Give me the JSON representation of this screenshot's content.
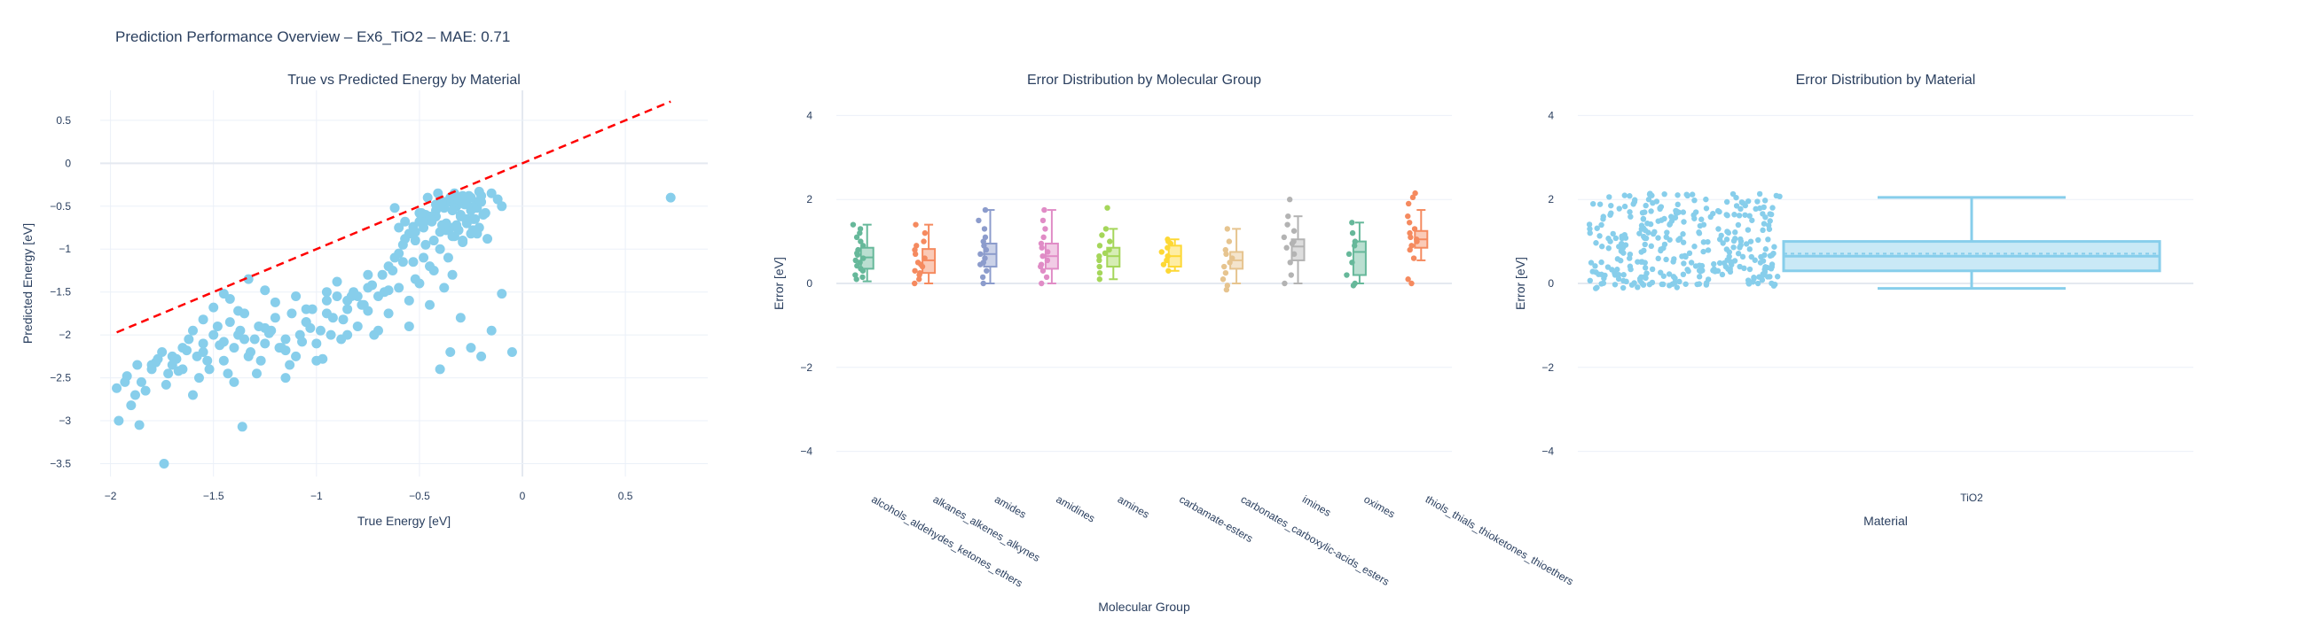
{
  "page": {
    "title": "Prediction Performance Overview – Ex6_TiO2 – MAE: 0.71"
  },
  "colors": {
    "text": "#2a3f5f",
    "grid": "#ebf0f8",
    "zeroline": "#e4e9f0",
    "scatter": "#87ceeb",
    "identity_line": "#ff0000"
  },
  "chart_data": [
    {
      "type": "scatter",
      "title": "True vs Predicted Energy by Material",
      "xlabel": "True Energy [eV]",
      "ylabel": "Predicted Energy [eV]",
      "xlim": [
        -2.05,
        0.9
      ],
      "ylim": [
        -3.65,
        0.85
      ],
      "xticks": [
        -2,
        -1.5,
        -1,
        -0.5,
        0,
        0.5
      ],
      "xtick_labels": [
        "−2",
        "−1.5",
        "−1",
        "−0.5",
        "0",
        "0.5"
      ],
      "yticks": [
        0.5,
        0,
        -0.5,
        -1,
        -1.5,
        -2,
        -2.5,
        -3,
        -3.5
      ],
      "ytick_labels": [
        "0.5",
        "0",
        "−0.5",
        "−1",
        "−1.5",
        "−2",
        "−2.5",
        "−3",
        "−3.5"
      ],
      "grid": true,
      "identity_line": {
        "x": [
          -1.97,
          0.72
        ],
        "y": [
          -1.97,
          0.72
        ],
        "style": "dashed"
      },
      "series": [
        {
          "x": [
            -1.97,
            -1.92,
            -1.9,
            -1.88,
            -1.85,
            -1.8,
            -1.78,
            -1.75,
            -1.72,
            -1.7,
            -1.68,
            -1.65,
            -1.62,
            -1.6,
            -1.58,
            -1.55,
            -1.52,
            -1.5,
            -1.48,
            -1.45,
            -1.42,
            -1.4,
            -1.38,
            -1.35,
            -1.32,
            -1.3,
            -1.28,
            -1.25,
            -1.22,
            -1.2,
            -1.18,
            -1.15,
            -1.12,
            -1.1,
            -1.08,
            -1.05,
            -1.02,
            -1.0,
            -0.98,
            -0.95,
            -0.92,
            -0.9,
            -0.88,
            -0.85,
            -0.82,
            -0.8,
            -0.78,
            -0.75,
            -0.72,
            -0.7,
            -0.68,
            -0.65,
            -0.62,
            -0.6,
            -0.58,
            -0.55,
            -0.52,
            -0.5,
            -0.48,
            -0.45,
            -0.42,
            -0.4,
            -0.38,
            -0.35,
            -0.32,
            -0.3,
            -0.28,
            -0.25,
            -0.22,
            -0.2,
            -1.96,
            -1.93,
            -1.87,
            -1.83,
            -1.77,
            -1.73,
            -1.67,
            -1.63,
            -1.57,
            -1.53,
            -1.47,
            -1.43,
            -1.37,
            -1.33,
            -1.27,
            -1.23,
            -1.17,
            -1.13,
            -1.07,
            -1.03,
            -0.97,
            -0.93,
            -0.87,
            -0.83,
            -0.77,
            -0.73,
            -0.67,
            -0.63,
            -0.57,
            -0.53,
            -0.47,
            -0.43,
            -0.37,
            -0.33,
            -0.27,
            -0.23,
            -0.18,
            -0.15,
            -0.12,
            -0.1,
            -1.74,
            -1.36,
            -1.86,
            -1.6,
            -1.4,
            -1.29,
            -1.15,
            -1.0,
            -0.85,
            -0.7,
            -0.55,
            -0.45,
            -0.4,
            -0.35,
            -0.3,
            -0.25,
            -0.2,
            -0.15,
            -0.1,
            -0.05,
            0.72,
            -0.5,
            -0.45,
            -0.42,
            -0.38,
            -0.36,
            -0.34,
            -0.32,
            -0.3,
            -0.28,
            -0.26,
            -0.24,
            -0.22,
            -0.2,
            -0.18,
            -0.48,
            -0.44,
            -0.4,
            -0.37,
            -0.33,
            -0.31,
            -0.29,
            -0.27,
            -0.25,
            -0.23,
            -0.21,
            -0.19,
            -0.46,
            -0.41,
            -0.39,
            -0.35,
            -0.33,
            -0.31,
            -0.29,
            -0.27,
            -0.25,
            -0.21,
            -1.45,
            -1.5,
            -1.55,
            -1.42,
            -1.38,
            -1.33,
            -1.25,
            -1.2,
            -1.1,
            -1.05,
            -0.95,
            -0.9,
            -0.8,
            -0.75,
            -0.65,
            -0.6,
            -0.52,
            -0.48,
            -0.43,
            -0.38,
            -0.36,
            -0.34,
            -0.6,
            -0.55,
            -0.5,
            -1.8,
            -1.7,
            -1.65,
            -1.55,
            -1.45,
            -1.35,
            -1.25,
            -1.15,
            -1.05,
            -0.95,
            -0.85,
            -0.75,
            -0.65,
            -0.58,
            -0.52,
            -0.47,
            -0.42,
            -0.37,
            -0.32,
            -0.27,
            -0.22,
            -0.17,
            -0.62,
            -0.57,
            -0.53,
            -0.49,
            -0.44,
            -0.39,
            -0.34,
            -0.29,
            -0.24
          ],
          "y": [
            -2.62,
            -2.48,
            -2.82,
            -2.7,
            -2.55,
            -2.4,
            -2.32,
            -2.2,
            -2.45,
            -2.35,
            -2.28,
            -2.15,
            -2.05,
            -1.95,
            -2.25,
            -2.1,
            -2.4,
            -2.0,
            -1.9,
            -2.3,
            -1.85,
            -2.15,
            -2.0,
            -1.75,
            -2.2,
            -2.05,
            -1.9,
            -2.1,
            -1.95,
            -1.8,
            -2.15,
            -2.05,
            -1.75,
            -2.25,
            -2.0,
            -1.85,
            -1.7,
            -2.1,
            -1.95,
            -1.6,
            -1.8,
            -1.55,
            -2.05,
            -1.7,
            -1.5,
            -1.9,
            -1.65,
            -1.45,
            -2.0,
            -1.55,
            -1.3,
            -1.75,
            -1.1,
            -1.45,
            -0.95,
            -1.6,
            -0.8,
            -1.4,
            -0.7,
            -1.2,
            -0.55,
            -1.0,
            -0.45,
            -0.75,
            -0.5,
            -0.62,
            -0.4,
            -0.55,
            -0.45,
            -0.38,
            -3.0,
            -2.55,
            -2.35,
            -2.65,
            -2.28,
            -2.58,
            -2.42,
            -2.18,
            -2.5,
            -2.3,
            -2.12,
            -2.45,
            -1.95,
            -2.25,
            -2.3,
            -1.98,
            -2.15,
            -2.35,
            -2.08,
            -1.92,
            -2.28,
            -2.0,
            -1.82,
            -1.55,
            -1.65,
            -1.42,
            -1.5,
            -1.25,
            -0.88,
            -1.15,
            -0.6,
            -0.9,
            -0.7,
            -0.48,
            -0.65,
            -0.5,
            -0.58,
            -0.35,
            -0.42,
            -0.5,
            -3.5,
            -3.07,
            -3.05,
            -2.7,
            -2.55,
            -2.45,
            -2.5,
            -2.3,
            -2.0,
            -1.95,
            -1.9,
            -1.65,
            -2.4,
            -2.2,
            -1.8,
            -2.15,
            -2.25,
            -1.95,
            -1.52,
            -2.2,
            -0.4,
            -0.58,
            -0.62,
            -0.48,
            -0.52,
            -0.45,
            -0.55,
            -0.42,
            -0.6,
            -0.48,
            -0.38,
            -0.65,
            -0.52,
            -0.45,
            -0.58,
            -0.75,
            -0.68,
            -0.8,
            -0.72,
            -0.85,
            -0.78,
            -0.9,
            -0.7,
            -0.82,
            -0.65,
            -0.75,
            -0.6,
            -0.4,
            -0.35,
            -0.45,
            -0.4,
            -0.35,
            -0.42,
            -0.38,
            -0.46,
            -0.4,
            -0.33,
            -1.52,
            -1.68,
            -1.82,
            -1.58,
            -1.72,
            -1.35,
            -1.48,
            -1.62,
            -1.55,
            -1.7,
            -1.5,
            -1.38,
            -1.55,
            -1.3,
            -1.2,
            -1.05,
            -1.35,
            -1.1,
            -1.25,
            -1.45,
            -1.1,
            -1.3,
            -0.75,
            -0.82,
            -0.68,
            -2.35,
            -2.25,
            -2.4,
            -2.2,
            -2.08,
            -2.05,
            -1.92,
            -2.18,
            -1.85,
            -1.75,
            -1.6,
            -1.72,
            -1.48,
            -1.15,
            -0.9,
            -0.95,
            -0.62,
            -0.78,
            -0.72,
            -0.68,
            -0.82,
            -0.88,
            -0.52,
            -0.68,
            -0.74,
            -0.58,
            -0.66,
            -0.72,
            -0.85,
            -0.92,
            -0.78
          ]
        }
      ]
    },
    {
      "type": "box",
      "title": "Error Distribution by Molecular Group",
      "xlabel": "Molecular Group",
      "ylabel": "Error [eV]",
      "ylim": [
        -4.6,
        4.6
      ],
      "yticks": [
        4,
        2,
        0,
        -2,
        -4
      ],
      "ytick_labels": [
        "4",
        "2",
        "0",
        "−2",
        "−4"
      ],
      "categories": [
        "alcohols_aldehydes_ketones_ethers",
        "alkanes_alkenes_alkynes",
        "amides",
        "amidines",
        "amines",
        "carbamate-esters",
        "carbonates_carboxylic-acids_esters",
        "imines",
        "oximes",
        "thiols_thials_thioketones_thioethers"
      ],
      "colors": [
        "#66b89a",
        "#f58a5f",
        "#8c9ccc",
        "#e08cc6",
        "#a5d65a",
        "#fdd835",
        "#e6c48f",
        "#b3b3b3",
        "#66b89a",
        "#f58a5f"
      ],
      "stats": [
        {
          "min": 0.05,
          "q1": 0.35,
          "median": 0.62,
          "q3": 0.85,
          "max": 1.4
        },
        {
          "min": 0.0,
          "q1": 0.25,
          "median": 0.55,
          "q3": 0.82,
          "max": 1.4
        },
        {
          "min": 0.0,
          "q1": 0.4,
          "median": 0.7,
          "q3": 0.95,
          "max": 1.75
        },
        {
          "min": 0.0,
          "q1": 0.35,
          "median": 0.65,
          "q3": 0.95,
          "max": 1.75
        },
        {
          "min": 0.1,
          "q1": 0.4,
          "median": 0.65,
          "q3": 0.85,
          "max": 1.3
        },
        {
          "min": 0.3,
          "q1": 0.4,
          "median": 0.65,
          "q3": 0.9,
          "max": 1.05
        },
        {
          "min": 0.0,
          "q1": 0.35,
          "median": 0.55,
          "q3": 0.75,
          "max": 1.3
        },
        {
          "min": 0.0,
          "q1": 0.55,
          "median": 0.88,
          "q3": 1.05,
          "max": 1.6
        },
        {
          "min": 0.0,
          "q1": 0.2,
          "median": 0.75,
          "q3": 1.0,
          "max": 1.45
        },
        {
          "min": 0.55,
          "q1": 0.85,
          "median": 1.05,
          "q3": 1.25,
          "max": 1.75
        }
      ],
      "points": [
        [
          0.1,
          0.2,
          0.3,
          0.42,
          0.5,
          0.55,
          0.6,
          0.68,
          0.72,
          0.8,
          0.9,
          1.0,
          1.1,
          1.2,
          1.3,
          1.4,
          0.15,
          0.35
        ],
        [
          0.0,
          0.1,
          0.2,
          0.3,
          0.4,
          0.5,
          0.6,
          0.7,
          0.8,
          0.9,
          1.0,
          1.2,
          1.4,
          0.25,
          0.45
        ],
        [
          0.0,
          0.15,
          0.3,
          0.5,
          0.6,
          0.7,
          0.8,
          0.9,
          1.0,
          1.1,
          1.3,
          1.5,
          1.75,
          0.45
        ],
        [
          0.0,
          0.15,
          0.3,
          0.45,
          0.55,
          0.65,
          0.75,
          0.85,
          0.95,
          1.1,
          1.3,
          1.5,
          1.75,
          0.4
        ],
        [
          0.1,
          0.25,
          0.4,
          0.55,
          0.65,
          0.72,
          0.8,
          0.9,
          1.0,
          1.15,
          1.3,
          1.8
        ],
        [
          0.3,
          0.45,
          0.55,
          0.65,
          0.75,
          0.85,
          0.95,
          1.0,
          1.05
        ],
        [
          -0.15,
          -0.05,
          0.1,
          0.25,
          0.4,
          0.5,
          0.6,
          0.7,
          0.8,
          1.0,
          1.3
        ],
        [
          0.0,
          0.2,
          0.5,
          0.7,
          0.85,
          0.95,
          1.0,
          1.1,
          1.25,
          1.4,
          1.6,
          2.0
        ],
        [
          -0.05,
          0.0,
          0.2,
          0.5,
          0.7,
          0.9,
          1.0,
          1.2,
          1.45
        ],
        [
          0.0,
          0.1,
          0.6,
          0.8,
          0.9,
          1.0,
          1.05,
          1.1,
          1.2,
          1.3,
          1.45,
          1.6,
          1.9,
          2.05,
          2.15
        ]
      ]
    },
    {
      "type": "box",
      "title": "Error Distribution by Material",
      "xlabel": "Material",
      "ylabel": "Error [eV]",
      "ylim": [
        -4.6,
        4.6
      ],
      "yticks": [
        4,
        2,
        0,
        -2,
        -4
      ],
      "ytick_labels": [
        "4",
        "2",
        "0",
        "−2",
        "−4"
      ],
      "categories": [
        "TiO2"
      ],
      "color": "#87ceeb",
      "stats": {
        "min": -0.12,
        "q1": 0.3,
        "median": 0.65,
        "mean": 0.71,
        "q3": 1.0,
        "max": 2.05
      }
    }
  ]
}
